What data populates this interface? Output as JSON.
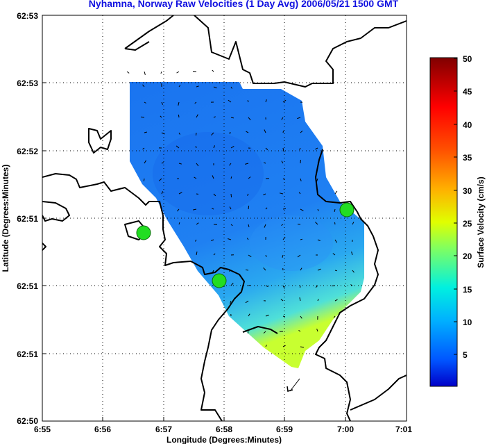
{
  "title": "Nyhamna, Norway Raw Velocities (1 Day Avg) 2006/05/21 1500 GMT",
  "x_axis_label": "Longitude (Degrees:Minutes)",
  "y_axis_label": "Latitude (Degrees:Minutes)",
  "x_ticks": [
    "6:55",
    "6:56",
    "6:57",
    "6:58",
    "6:59",
    "7:00",
    "7:01"
  ],
  "y_ticks": [
    "62:53",
    "62:53",
    "62:52",
    "62:51",
    "62:51",
    "62:51",
    "62:50"
  ],
  "colorbar": {
    "label": "Surface Velocity (cm/s)",
    "ticks": [
      "5",
      "10",
      "15",
      "20",
      "25",
      "30",
      "35",
      "40",
      "45",
      "50"
    ],
    "min": 0,
    "max": 50,
    "colors": [
      "#0000c0",
      "#0060ff",
      "#00c0ff",
      "#00ffc0",
      "#80ff00",
      "#ffff00",
      "#ffa000",
      "#ff2000",
      "#c00000",
      "#800000"
    ]
  },
  "stations": [
    {
      "id": "station-west"
    },
    {
      "id": "station-south"
    },
    {
      "id": "station-east"
    }
  ],
  "grid": "dotted"
}
